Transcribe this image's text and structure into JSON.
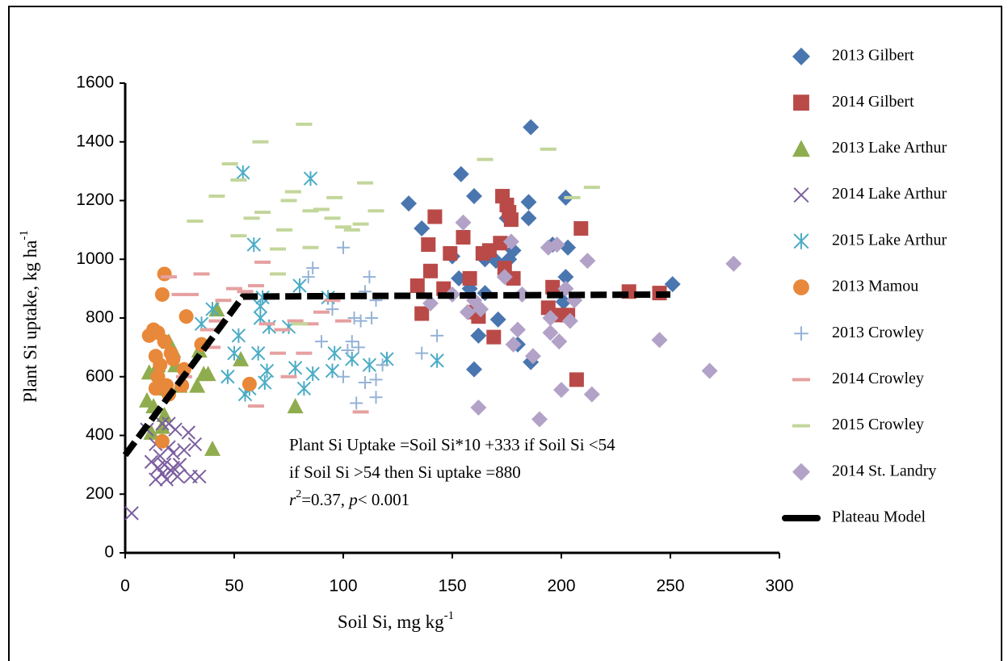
{
  "chart_data": {
    "type": "scatter",
    "x_label": "Soil Si, mg kg",
    "x_label_sup": "-1",
    "y_label": "Plant Si uptake, kg ha",
    "y_label_sup": "-1",
    "xlim": [
      0,
      300
    ],
    "ylim": [
      0,
      1600
    ],
    "xticks": [
      0,
      50,
      100,
      150,
      200,
      250,
      300
    ],
    "yticks": [
      0,
      200,
      400,
      600,
      800,
      1000,
      1200,
      1400,
      1600
    ],
    "grid": false,
    "legend": "right",
    "annotations": [
      [
        "Plant Si Uptake =Soil Si*10 +333 if Soil Si <54"
      ],
      [
        " if Soil Si >54 then Si uptake =880"
      ],
      [
        "r",
        "2",
        "=0.37, ",
        "p",
        "< 0.001"
      ]
    ],
    "series": [
      {
        "name": "2013 Gilbert",
        "marker": "diamond",
        "color": "#4a76b0",
        "x": [
          130,
          136,
          154,
          160,
          186,
          185,
          185,
          202,
          203,
          196,
          175,
          150,
          153,
          165,
          170,
          178,
          176,
          160,
          162,
          171,
          180,
          186,
          202,
          201,
          251,
          165,
          158
        ],
        "values": [
          1190,
          1105,
          1290,
          1215,
          1450,
          1195,
          1140,
          1210,
          1040,
          1050,
          1140,
          1010,
          935,
          1000,
          995,
          1030,
          1000,
          625,
          740,
          795,
          710,
          650,
          940,
          855,
          915,
          885,
          900
        ]
      },
      {
        "name": "2014 Gilbert",
        "marker": "square",
        "color": "#b94a48",
        "x": [
          134,
          136,
          139,
          140,
          142,
          146,
          149,
          155,
          158,
          160,
          162,
          164,
          167,
          169,
          172,
          173,
          174,
          175,
          176,
          177,
          178,
          194,
          196,
          199,
          203,
          207,
          209,
          231,
          245
        ],
        "values": [
          910,
          815,
          1050,
          960,
          1145,
          900,
          1020,
          1075,
          935,
          820,
          805,
          1020,
          1030,
          735,
          1055,
          1215,
          970,
          1185,
          1160,
          1135,
          935,
          835,
          905,
          810,
          810,
          590,
          1105,
          890,
          885
        ]
      },
      {
        "name": "2013 Lake Arthur",
        "marker": "triangle",
        "color": "#8fad4e",
        "x": [
          10,
          11,
          13,
          15,
          17,
          18,
          19,
          20,
          22,
          23,
          25,
          33,
          36,
          38,
          40,
          42,
          53,
          78,
          34,
          12
        ],
        "values": [
          520,
          615,
          500,
          640,
          430,
          470,
          560,
          720,
          690,
          640,
          570,
          570,
          610,
          610,
          355,
          830,
          660,
          500,
          690,
          410
        ]
      },
      {
        "name": "2014 Lake Arthur",
        "marker": "x",
        "color": "#7c5fa0",
        "x": [
          3,
          10,
          12,
          14,
          14,
          15,
          16,
          17,
          18,
          19,
          20,
          21,
          22,
          23,
          24,
          25,
          27,
          29,
          30,
          32,
          34,
          20,
          17,
          22
        ],
        "values": [
          135,
          420,
          310,
          370,
          250,
          290,
          330,
          270,
          300,
          250,
          440,
          280,
          340,
          420,
          260,
          300,
          350,
          410,
          260,
          370,
          260,
          360,
          440,
          290
        ]
      },
      {
        "name": "2015 Lake Arthur",
        "marker": "asterisk",
        "color": "#4bacc6",
        "x": [
          35,
          40,
          47,
          50,
          52,
          54,
          55,
          57,
          59,
          61,
          62,
          63,
          64,
          65,
          66,
          75,
          78,
          80,
          82,
          85,
          86,
          93,
          95,
          96,
          104,
          112,
          120,
          143,
          62
        ],
        "values": [
          780,
          830,
          600,
          680,
          740,
          1295,
          540,
          560,
          1050,
          680,
          800,
          870,
          580,
          620,
          770,
          770,
          630,
          910,
          560,
          1275,
          610,
          870,
          620,
          680,
          660,
          640,
          660,
          655,
          840
        ]
      },
      {
        "name": "2013 Mamou",
        "marker": "circle",
        "color": "#e8883a",
        "x": [
          11,
          13,
          14,
          15,
          15,
          16,
          17,
          17,
          18,
          18,
          19,
          20,
          21,
          22,
          26,
          27,
          28,
          35,
          57,
          14
        ],
        "values": [
          740,
          760,
          670,
          750,
          600,
          640,
          880,
          380,
          950,
          720,
          570,
          540,
          680,
          660,
          570,
          625,
          805,
          710,
          575,
          560
        ]
      },
      {
        "name": "2013 Crowley",
        "marker": "plus",
        "color": "#95b3d7",
        "x": [
          84,
          86,
          90,
          95,
          100,
          102,
          104,
          105,
          106,
          108,
          110,
          110,
          112,
          113,
          115,
          115,
          115,
          118,
          136,
          143,
          107,
          100
        ],
        "values": [
          940,
          970,
          720,
          830,
          1040,
          690,
          720,
          800,
          510,
          790,
          580,
          890,
          940,
          800,
          530,
          590,
          860,
          640,
          680,
          740,
          700,
          600
        ]
      },
      {
        "name": "2014 Crowley",
        "marker": "dash",
        "color": "#e6a0a0",
        "x": [
          20,
          25,
          27,
          30,
          35,
          38,
          42,
          45,
          50,
          55,
          60,
          63,
          65,
          70,
          72,
          75,
          78,
          82,
          85,
          90,
          95,
          100,
          108,
          60,
          40
        ],
        "values": [
          940,
          880,
          600,
          880,
          950,
          760,
          790,
          860,
          900,
          890,
          910,
          990,
          780,
          680,
          760,
          600,
          790,
          680,
          780,
          820,
          860,
          790,
          480,
          500,
          700
        ]
      },
      {
        "name": "2015 Crowley",
        "marker": "dash",
        "color": "#c3d69b",
        "x": [
          32,
          42,
          48,
          52,
          52,
          58,
          62,
          63,
          70,
          73,
          75,
          77,
          80,
          82,
          85,
          90,
          95,
          96,
          100,
          104,
          108,
          110,
          115,
          165,
          194,
          205,
          214,
          70,
          85
        ],
        "values": [
          1130,
          1215,
          1325,
          1270,
          1080,
          1140,
          1400,
          1160,
          1035,
          1100,
          1200,
          1230,
          780,
          1460,
          1165,
          1170,
          1140,
          1210,
          1110,
          1100,
          1120,
          1260,
          1165,
          1340,
          1375,
          1210,
          1245,
          950,
          1040
        ]
      },
      {
        "name": "2014 St. Landry",
        "marker": "diamond",
        "color": "#b3a2c7",
        "x": [
          140,
          150,
          155,
          157,
          160,
          162,
          163,
          174,
          177,
          178,
          180,
          182,
          187,
          190,
          194,
          195,
          195,
          198,
          199,
          200,
          202,
          204,
          206,
          212,
          214,
          245,
          268,
          279
        ],
        "values": [
          850,
          880,
          1125,
          820,
          860,
          495,
          830,
          940,
          1060,
          710,
          760,
          880,
          670,
          455,
          1040,
          750,
          800,
          1050,
          720,
          555,
          900,
          790,
          860,
          995,
          540,
          725,
          620,
          985
        ]
      },
      {
        "name": "Plateau Model",
        "marker": "line",
        "color": "#000000",
        "x": [
          0,
          54,
          250
        ],
        "values": [
          333,
          873,
          880
        ]
      }
    ]
  }
}
